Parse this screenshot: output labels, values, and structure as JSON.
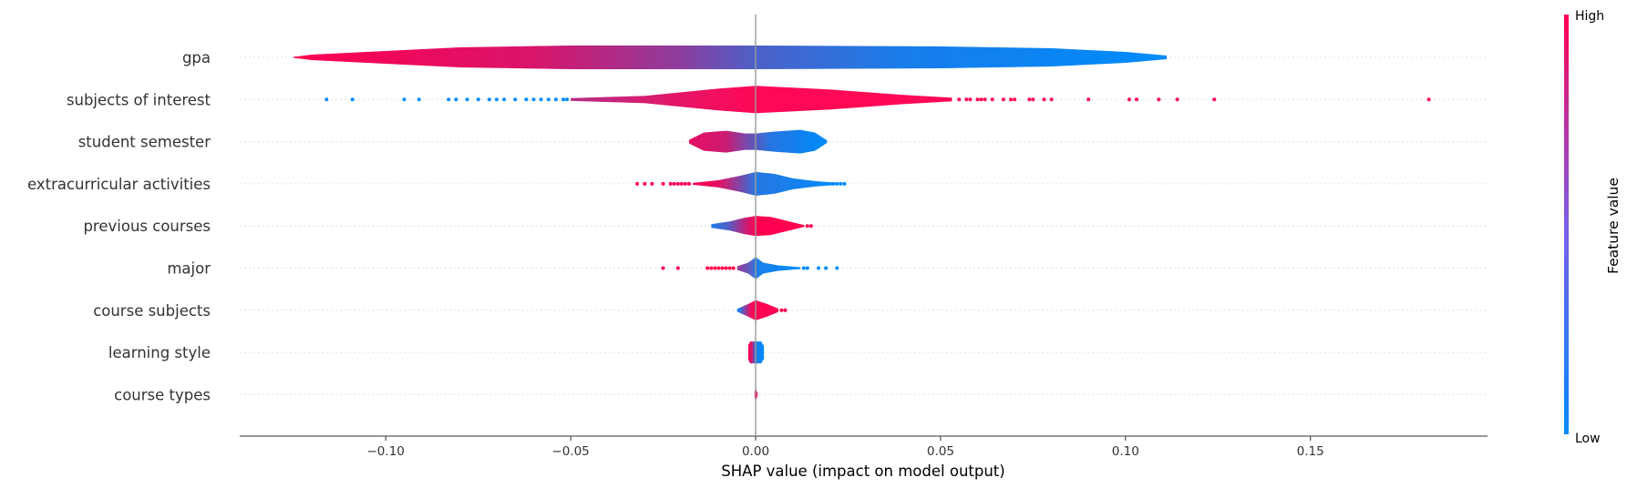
{
  "chart_data": {
    "type": "violin",
    "xlabel": "SHAP value (impact on model output)",
    "xlim": [
      -0.14,
      0.197
    ],
    "xticks": [
      -0.1,
      -0.05,
      0.0,
      0.05,
      0.1,
      0.15
    ],
    "xtick_labels": [
      "−0.10",
      "−0.05",
      "0.00",
      "0.05",
      "0.10",
      "0.15"
    ],
    "colorbar": {
      "title": "Feature value",
      "high_label": "High",
      "low_label": "Low",
      "low_color": "#008bfb",
      "high_color": "#ff0051"
    },
    "features": [
      {
        "name": "gpa",
        "min": -0.125,
        "max": 0.111,
        "width": [
          [
            -0.125,
            0.5
          ],
          [
            -0.12,
            3
          ],
          [
            -0.1,
            7
          ],
          [
            -0.08,
            11
          ],
          [
            -0.05,
            13
          ],
          [
            0,
            13
          ],
          [
            0.05,
            12
          ],
          [
            0.08,
            10
          ],
          [
            0.1,
            6
          ],
          [
            0.111,
            2
          ]
        ],
        "color": [
          [
            -0.125,
            1
          ],
          [
            -0.06,
            0.85
          ],
          [
            -0.02,
            0.55
          ],
          [
            0,
            0.3
          ],
          [
            0.04,
            0.1
          ],
          [
            0.111,
            0
          ]
        ],
        "outliers": []
      },
      {
        "name": "subjects of interest",
        "min": -0.05,
        "max": 0.053,
        "width": [
          [
            -0.05,
            1.5
          ],
          [
            -0.03,
            4
          ],
          [
            -0.01,
            12
          ],
          [
            0,
            15
          ],
          [
            0.02,
            11
          ],
          [
            0.04,
            5
          ],
          [
            0.053,
            2
          ]
        ],
        "color": [
          [
            -0.05,
            0.7
          ],
          [
            -0.02,
            0.9
          ],
          [
            0,
            1
          ],
          [
            0.053,
            1
          ]
        ],
        "outliers": [
          [
            -0.116,
            0
          ],
          [
            -0.109,
            0
          ],
          [
            -0.095,
            0
          ],
          [
            -0.091,
            0
          ],
          [
            -0.083,
            0
          ],
          [
            -0.081,
            0
          ],
          [
            -0.078,
            0
          ],
          [
            -0.075,
            0
          ],
          [
            -0.072,
            0
          ],
          [
            -0.07,
            0
          ],
          [
            -0.068,
            0
          ],
          [
            -0.065,
            0
          ],
          [
            -0.062,
            0
          ],
          [
            -0.06,
            0
          ],
          [
            -0.058,
            0
          ],
          [
            -0.056,
            0
          ],
          [
            -0.054,
            0
          ],
          [
            -0.052,
            0
          ],
          [
            -0.051,
            0
          ],
          [
            0.055,
            1
          ],
          [
            0.057,
            1
          ],
          [
            0.058,
            1
          ],
          [
            0.06,
            1
          ],
          [
            0.061,
            1
          ],
          [
            0.062,
            1
          ],
          [
            0.064,
            1
          ],
          [
            0.067,
            1
          ],
          [
            0.069,
            1
          ],
          [
            0.07,
            1
          ],
          [
            0.074,
            1
          ],
          [
            0.075,
            1
          ],
          [
            0.078,
            1
          ],
          [
            0.08,
            1
          ],
          [
            0.09,
            1
          ],
          [
            0.101,
            1
          ],
          [
            0.103,
            1
          ],
          [
            0.109,
            1
          ],
          [
            0.114,
            1
          ],
          [
            0.124,
            1
          ],
          [
            0.182,
            1
          ]
        ]
      },
      {
        "name": "student semester",
        "min": -0.018,
        "max": 0.019,
        "width": [
          [
            -0.018,
            2
          ],
          [
            -0.014,
            10
          ],
          [
            -0.008,
            12
          ],
          [
            -0.003,
            9
          ],
          [
            0,
            9
          ],
          [
            0.005,
            11
          ],
          [
            0.012,
            13
          ],
          [
            0.016,
            10
          ],
          [
            0.019,
            2
          ]
        ],
        "color": [
          [
            -0.018,
            0.9
          ],
          [
            -0.008,
            0.8
          ],
          [
            -0.002,
            0.45
          ],
          [
            0.004,
            0.15
          ],
          [
            0.019,
            0
          ]
        ],
        "outliers": []
      },
      {
        "name": "extracurricular activities",
        "min": -0.017,
        "max": 0.022,
        "width": [
          [
            -0.017,
            1
          ],
          [
            -0.01,
            4
          ],
          [
            -0.004,
            9
          ],
          [
            0,
            13
          ],
          [
            0.005,
            11
          ],
          [
            0.01,
            6
          ],
          [
            0.016,
            3
          ],
          [
            0.022,
            1
          ]
        ],
        "color": [
          [
            -0.017,
            1
          ],
          [
            -0.01,
            0.9
          ],
          [
            -0.005,
            0.55
          ],
          [
            0,
            0.15
          ],
          [
            0.022,
            0
          ]
        ],
        "outliers": [
          [
            -0.032,
            1
          ],
          [
            -0.03,
            1
          ],
          [
            -0.028,
            1
          ],
          [
            -0.025,
            1
          ],
          [
            -0.023,
            1
          ],
          [
            -0.022,
            1
          ],
          [
            -0.021,
            1
          ],
          [
            -0.02,
            1
          ],
          [
            -0.019,
            1
          ],
          [
            -0.018,
            1
          ],
          [
            0.018,
            0
          ],
          [
            0.019,
            0
          ],
          [
            0.02,
            0
          ],
          [
            0.021,
            0
          ],
          [
            0.022,
            0
          ],
          [
            0.023,
            0
          ],
          [
            0.024,
            0
          ]
        ]
      },
      {
        "name": "previous courses",
        "min": -0.012,
        "max": 0.013,
        "width": [
          [
            -0.012,
            2
          ],
          [
            -0.007,
            5
          ],
          [
            -0.003,
            9
          ],
          [
            0,
            11
          ],
          [
            0.004,
            10
          ],
          [
            0.008,
            6
          ],
          [
            0.011,
            3
          ],
          [
            0.013,
            1
          ]
        ],
        "color": [
          [
            -0.012,
            0.1
          ],
          [
            -0.007,
            0.35
          ],
          [
            -0.003,
            0.75
          ],
          [
            0,
            1
          ],
          [
            0.013,
            1
          ]
        ],
        "outliers": [
          [
            0.014,
            1
          ],
          [
            0.015,
            1
          ]
        ]
      },
      {
        "name": "major",
        "min": -0.005,
        "max": 0.012,
        "width": [
          [
            -0.005,
            2
          ],
          [
            -0.002,
            6
          ],
          [
            0,
            12
          ],
          [
            0.002,
            6
          ],
          [
            0.006,
            3
          ],
          [
            0.012,
            1
          ]
        ],
        "color": [
          [
            -0.005,
            0.6
          ],
          [
            -0.001,
            0.3
          ],
          [
            0,
            0.1
          ],
          [
            0.012,
            0
          ]
        ],
        "outliers": [
          [
            -0.025,
            1
          ],
          [
            -0.021,
            1
          ],
          [
            -0.013,
            1
          ],
          [
            -0.012,
            1
          ],
          [
            -0.011,
            1
          ],
          [
            -0.01,
            1
          ],
          [
            -0.009,
            1
          ],
          [
            -0.008,
            1
          ],
          [
            -0.007,
            1
          ],
          [
            -0.006,
            1
          ],
          [
            0.013,
            0
          ],
          [
            0.014,
            0
          ],
          [
            0.017,
            0
          ],
          [
            0.019,
            0
          ],
          [
            0.022,
            0
          ]
        ]
      },
      {
        "name": "course subjects",
        "min": -0.005,
        "max": 0.006,
        "width": [
          [
            -0.005,
            1.5
          ],
          [
            -0.002,
            7
          ],
          [
            0,
            11
          ],
          [
            0.003,
            7
          ],
          [
            0.006,
            2
          ]
        ],
        "color": [
          [
            -0.005,
            0
          ],
          [
            -0.003,
            0.5
          ],
          [
            -0.001,
            1
          ],
          [
            0.006,
            1
          ]
        ],
        "outliers": [
          [
            0.007,
            1
          ],
          [
            0.008,
            1
          ]
        ]
      },
      {
        "name": "learning style",
        "min": -0.002,
        "max": 0.002,
        "width": [
          [
            -0.002,
            8
          ],
          [
            -0.0015,
            12
          ],
          [
            0,
            12
          ],
          [
            0.0015,
            12
          ],
          [
            0.002,
            8
          ]
        ],
        "color": [
          [
            -0.002,
            1
          ],
          [
            -0.001,
            0.8
          ],
          [
            0,
            0.1
          ],
          [
            0.002,
            0
          ]
        ],
        "outliers": []
      },
      {
        "name": "course types",
        "min": -0.0003,
        "max": 0.0003,
        "width": [
          [
            -0.0003,
            3
          ],
          [
            0,
            6
          ],
          [
            0.0003,
            3
          ]
        ],
        "color": [
          [
            -0.0003,
            1
          ],
          [
            0.0003,
            1
          ]
        ],
        "outliers": []
      }
    ]
  }
}
